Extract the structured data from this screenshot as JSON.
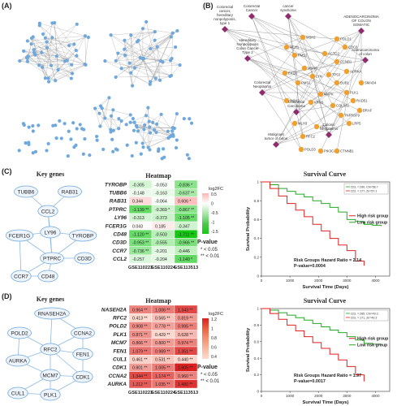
{
  "panels": {
    "a": {
      "label": "(A)"
    },
    "b": {
      "label": "(B)",
      "diseases": [
        {
          "text": "Hereditary Nonpolyposis Colorectal Cancer"
        },
        {
          "text": "Hereditary non-polyposis colorectal cancer syndrome"
        },
        {
          "text": "Colorectal cancer, hereditary nonpolyposis, type 1"
        },
        {
          "text": "Hereditary Nonpolyposis Colon Cancer Type 2"
        },
        {
          "text": "ADENOCARCINOMA OF COLON SOMATIC"
        },
        {
          "text": "Adenocarcinoma of colon"
        },
        {
          "text": "Colorectal Neoplasms"
        },
        {
          "text": "Colorectal Carcinoma"
        },
        {
          "text": "Malignant tumor of colon"
        },
        {
          "text": "Colonic Neoplasms"
        }
      ],
      "genes": [
        "MSH2",
        "MLH1",
        "PMS2",
        "MSH6",
        "EXO1",
        "PMS1",
        "MSH3",
        "MLH3",
        "RFC2",
        "POLD3",
        "POLD1",
        "CDC6",
        "CCNB1",
        "AURKA",
        "BUB1",
        "PLK1",
        "RAD51",
        "COL3A1",
        "TNFRSF9",
        "LRP5",
        "MAPK",
        "LYN",
        "ACTG2",
        "TP53",
        "KRAS",
        "APC",
        "SMAD4",
        "BRAF",
        "PIK3CA",
        "CTNNB1"
      ]
    },
    "c": {
      "label": "(C)",
      "key_genes_title": "Key genes",
      "network_genes": [
        "TUBB6",
        "RAB31",
        "CCL2",
        "LY96",
        "FCER1G",
        "TYROBP",
        "PTPRC",
        "CD3D",
        "CCR7",
        "CD48"
      ],
      "heatmap_title": "Heatmap",
      "legend_title": "log2FC",
      "legend_ticks": [
        "0.5",
        "0",
        "-0.5",
        "-1",
        "-1.5"
      ],
      "pvalue_title": "P-value",
      "pvalue_items": [
        "* < 0.05",
        "** < 0.01"
      ],
      "survival_title": "Survival Curve",
      "survival_legend": [
        "223, =:290, Chi=58.7",
        "223, =:177, Zn=57.1"
      ],
      "group_high": "High risk group",
      "group_low": "Low risk group",
      "hr_text": "Risk Groups Hazard Ratio = 2.14",
      "p_text": "P-value=0.0004",
      "y_label": "Survival Probability",
      "x_label": "Survival Time (Days)"
    },
    "d": {
      "label": "(D)",
      "key_genes_title": "Key genes",
      "network_genes": [
        "RNASEH2A",
        "POLD2",
        "CCNA2",
        "RFC2",
        "FEN1",
        "AURKA",
        "MCM7",
        "CDK1",
        "CUL1",
        "PLK1"
      ],
      "heatmap_title": "Heatmap",
      "legend_title": "log2FC",
      "legend_ticks": [
        "1.2",
        "1",
        "0.8",
        "0.6",
        "0.4"
      ],
      "pvalue_title": "P-value",
      "pvalue_items": [
        "* < 0.05",
        "** < 0.01"
      ],
      "survival_title": "Survival Curve",
      "survival_legend": [
        "223, =:285, Chi=49.3",
        "223, =:171, Zn=49.3"
      ],
      "group_high": "High risk group",
      "group_low": "Low risk group",
      "hr_text": "Risk Groups Hazard Ratio = 1.97",
      "p_text": "P-value=0.0017",
      "y_label": "Survival Probability",
      "x_label": "Survival Time (Days)"
    }
  },
  "chart_data": [
    {
      "type": "heatmap",
      "title": "Heatmap",
      "columns": [
        "GSE110223",
        "GSE110224",
        "GSE113513"
      ],
      "rows": [
        {
          "gene": "TYROBP",
          "values": [
            -0.305,
            -0.053,
            -0.836
          ],
          "sig": [
            "",
            "",
            "*"
          ]
        },
        {
          "gene": "TUBB6",
          "values": [
            -0.148,
            -0.163,
            -0.637
          ],
          "sig": [
            "",
            "",
            "**"
          ]
        },
        {
          "gene": "RAB31",
          "values": [
            0.344,
            -0.064,
            0.606
          ],
          "sig": [
            "",
            "",
            "*"
          ]
        },
        {
          "gene": "PTPRC",
          "values": [
            -1.139,
            -0.369,
            -0.867
          ],
          "sig": [
            "**",
            "*",
            "**"
          ]
        },
        {
          "gene": "LY96",
          "values": [
            -0.313,
            -0.373,
            -1.105
          ],
          "sig": [
            "",
            "",
            "**"
          ]
        },
        {
          "gene": "FCER1G",
          "values": [
            0.043,
            0.185,
            -0.347
          ],
          "sig": [
            "",
            "",
            ""
          ]
        },
        {
          "gene": "CD48",
          "values": [
            -1.12,
            -0.503,
            -1.711
          ],
          "sig": [
            "**",
            "",
            "**"
          ]
        },
        {
          "gene": "CD3D",
          "values": [
            -0.953,
            -0.555,
            -0.966
          ],
          "sig": [
            "**",
            "",
            "**"
          ]
        },
        {
          "gene": "CCR7",
          "values": [
            -0.736,
            -0.201,
            -0.446
          ],
          "sig": [
            "**",
            "",
            ""
          ]
        },
        {
          "gene": "CCL2",
          "values": [
            -0.257,
            -0.204,
            -1.14
          ],
          "sig": [
            "",
            "",
            "*"
          ]
        }
      ]
    },
    {
      "type": "heatmap",
      "title": "Heatmap",
      "columns": [
        "GSE110223",
        "GSE110224",
        "GSE113513"
      ],
      "rows": [
        {
          "gene": "RNASEH2A",
          "values": [
            0.964,
            1.006,
            1.343
          ],
          "sig": [
            "**",
            "**",
            "**"
          ]
        },
        {
          "gene": "RFC2",
          "values": [
            0.413,
            0.565,
            0.819
          ],
          "sig": [
            "**",
            "**",
            "**"
          ]
        },
        {
          "gene": "POLD2",
          "values": [
            0.908,
            0.778,
            0.995
          ],
          "sig": [
            "**",
            "**",
            "**"
          ]
        },
        {
          "gene": "PLK1",
          "values": [
            0.871,
            0.429,
            0.628
          ],
          "sig": [
            "**",
            "**",
            "**"
          ]
        },
        {
          "gene": "MCM7",
          "values": [
            0.866,
            0.8,
            0.974
          ],
          "sig": [
            "**",
            "**",
            "**"
          ]
        },
        {
          "gene": "FEN1",
          "values": [
            1.079,
            0.989,
            1.351
          ],
          "sig": [
            "**",
            "**",
            "**"
          ]
        },
        {
          "gene": "CUL1",
          "values": [
            0.461,
            0.531,
            0.44
          ],
          "sig": [
            "**",
            "**",
            "**"
          ]
        },
        {
          "gene": "CDK1",
          "values": [
            0.801,
            1.005,
            1.605
          ],
          "sig": [
            "**",
            "**",
            "**"
          ]
        },
        {
          "gene": "CCNA2",
          "values": [
            1.344,
            1.174,
            0.96
          ],
          "sig": [
            "**",
            "**",
            "**"
          ]
        },
        {
          "gene": "AURKA",
          "values": [
            1.212,
            1.035,
            1.48
          ],
          "sig": [
            "**",
            "**",
            "**"
          ]
        }
      ]
    },
    {
      "type": "line",
      "title": "Survival Curve",
      "xlabel": "Survival Time (Days)",
      "ylabel": "Survival Probability",
      "xlim": [
        0,
        4500
      ],
      "ylim": [
        0,
        1
      ],
      "xticks": [
        "0",
        "1000",
        "2000",
        "3000",
        "4000"
      ],
      "yticks": [
        "0",
        "0.2",
        "0.4",
        "0.6",
        "0.8",
        "1"
      ],
      "series": [
        {
          "name": "Low risk group",
          "color": "#22aa22",
          "x": [
            0,
            300,
            600,
            900,
            1200,
            1500,
            1800,
            2100,
            2400,
            2700,
            3000,
            3300,
            3600,
            3900,
            4200
          ],
          "y": [
            1,
            0.97,
            0.93,
            0.9,
            0.87,
            0.84,
            0.8,
            0.77,
            0.73,
            0.68,
            0.6,
            0.58,
            0.55,
            0.54,
            0.53
          ]
        },
        {
          "name": "High risk group",
          "color": "#dd2222",
          "x": [
            0,
            300,
            600,
            900,
            1200,
            1500,
            1800,
            2100,
            2400,
            2700,
            3000,
            3300,
            3600
          ],
          "y": [
            1,
            0.93,
            0.85,
            0.77,
            0.7,
            0.63,
            0.55,
            0.48,
            0.4,
            0.33,
            0.27,
            0.16,
            0.11
          ]
        }
      ]
    },
    {
      "type": "line",
      "title": "Survival Curve",
      "xlabel": "Survival Time (Days)",
      "ylabel": "Survival Probability",
      "xlim": [
        0,
        4500
      ],
      "ylim": [
        0,
        1
      ],
      "xticks": [
        "0",
        "1000",
        "2000",
        "3000",
        "4000"
      ],
      "yticks": [
        "0",
        "0.2",
        "0.4",
        "0.6",
        "0.8",
        "1"
      ],
      "series": [
        {
          "name": "Low risk group",
          "color": "#22aa22",
          "x": [
            0,
            300,
            600,
            900,
            1200,
            1500,
            1800,
            2100,
            2400,
            2700,
            3000,
            3300,
            3600,
            3900,
            4200
          ],
          "y": [
            1,
            0.98,
            0.95,
            0.92,
            0.89,
            0.86,
            0.82,
            0.78,
            0.74,
            0.71,
            0.66,
            0.62,
            0.58,
            0.57,
            0.56
          ]
        },
        {
          "name": "High risk group",
          "color": "#dd2222",
          "x": [
            0,
            300,
            600,
            900,
            1200,
            1500,
            1800,
            2100,
            2400,
            2700,
            3000,
            3300,
            3600
          ],
          "y": [
            1,
            0.94,
            0.87,
            0.8,
            0.73,
            0.66,
            0.59,
            0.52,
            0.45,
            0.38,
            0.3,
            0.2,
            0.12
          ]
        }
      ]
    }
  ],
  "colors": {
    "node": "#6fa8dc",
    "disease": "#8e2c6f",
    "gene_orange": "#f0a030",
    "green": "#22aa22",
    "red": "#dd2222"
  }
}
